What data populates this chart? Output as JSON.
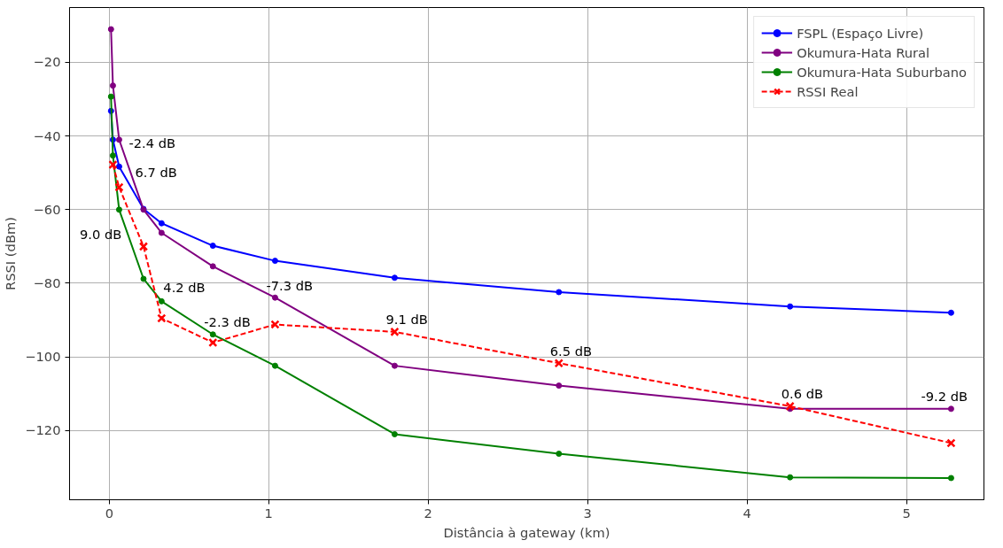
{
  "chart_data": {
    "type": "line",
    "xlabel": "Distância à gateway (km)",
    "ylabel": "RSSI (dBm)",
    "xlim": [
      -0.249,
      5.486
    ],
    "ylim": [
      -138.8,
      -5.1
    ],
    "xticks": [
      0,
      1,
      2,
      3,
      4,
      5
    ],
    "yticks": [
      -120,
      -100,
      -80,
      -60,
      -40,
      -20
    ],
    "grid": true,
    "legend": "top right",
    "series": [
      {
        "name": "FSPL (Espaço Livre)",
        "color": "#0000ff",
        "marker": "circle",
        "line_style": "solid",
        "x": [
          0.011,
          0.023,
          0.062,
          0.215,
          0.328,
          0.65,
          1.04,
          1.79,
          2.82,
          4.27,
          5.28
        ],
        "values": [
          -33.2,
          -41,
          -48.3,
          -59.8,
          -63.7,
          -69.8,
          -73.9,
          -78.5,
          -82.4,
          -86.3,
          -88.0
        ]
      },
      {
        "name": "Okumura-Hata Rural",
        "color": "#800080",
        "marker": "circle",
        "line_style": "solid",
        "x": [
          0.011,
          0.023,
          0.062,
          0.215,
          0.328,
          0.65,
          1.04,
          1.79,
          2.82,
          4.27,
          5.28
        ],
        "values": [
          -11,
          -26.3,
          -41,
          -60,
          -66.3,
          -75.4,
          -83.9,
          -102.4,
          -107.8,
          -114.1,
          -114.1
        ]
      },
      {
        "name": "Okumura-Hata Suburbano",
        "color": "#008000",
        "marker": "circle",
        "line_style": "solid",
        "x": [
          0.011,
          0.023,
          0.062,
          0.215,
          0.328,
          0.65,
          1.04,
          1.79,
          2.82,
          4.27,
          5.28
        ],
        "values": [
          -29.3,
          -45.3,
          -60,
          -78.8,
          -84.9,
          -93.9,
          -102.4,
          -121,
          -126.3,
          -132.7,
          -132.9
        ]
      },
      {
        "name": "RSSI Real",
        "color": "#ff0000",
        "marker": "cross",
        "line_style": "dashed",
        "x": [
          0.023,
          0.062,
          0.215,
          0.328,
          0.65,
          1.04,
          1.79,
          2.82,
          4.27,
          5.28
        ],
        "values": [
          -47.8,
          -53.9,
          -70,
          -89.5,
          -96.1,
          -91.2,
          -93.2,
          -101.7,
          -113.4,
          -123.4
        ]
      }
    ],
    "annotations": [
      {
        "text": "-2.4 dB",
        "x": 0.023,
        "y": -45.3
      },
      {
        "text": "6.7 dB",
        "x": 0.062,
        "y": -53.9
      },
      {
        "text": "9.0 dB",
        "x": 0.215,
        "y": -70
      },
      {
        "text": "4.2 dB",
        "x": 0.328,
        "y": -84.9
      },
      {
        "text": "-2.3 dB",
        "x": 0.65,
        "y": -93.9
      },
      {
        "text": "-7.3 dB",
        "x": 1.04,
        "y": -83.9
      },
      {
        "text": "9.1 dB",
        "x": 1.79,
        "y": -93.2
      },
      {
        "text": "6.5 dB",
        "x": 2.82,
        "y": -101.7
      },
      {
        "text": "0.6 dB",
        "x": 4.27,
        "y": -113.4
      },
      {
        "text": "-9.2 dB",
        "x": 5.28,
        "y": -114.1
      }
    ]
  }
}
